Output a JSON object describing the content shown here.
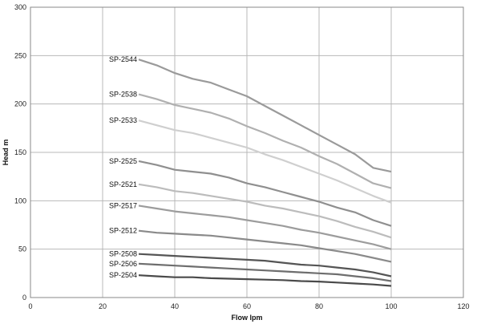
{
  "chart_data": {
    "type": "line",
    "title": "",
    "xlabel": "Flow  lpm",
    "ylabel": "Head  m",
    "xlim": [
      0,
      120
    ],
    "ylim": [
      0,
      300
    ],
    "xticks": [
      0,
      20,
      40,
      60,
      80,
      100,
      120
    ],
    "yticks": [
      0,
      50,
      100,
      150,
      200,
      250,
      300
    ],
    "grid": true,
    "series": [
      {
        "name": "SP-2544",
        "color": "#9a9a9a",
        "points": [
          [
            30,
            246
          ],
          [
            35,
            240
          ],
          [
            40,
            232
          ],
          [
            45,
            226
          ],
          [
            50,
            222
          ],
          [
            55,
            215
          ],
          [
            60,
            208
          ],
          [
            65,
            198
          ],
          [
            70,
            188
          ],
          [
            75,
            178
          ],
          [
            80,
            168
          ],
          [
            85,
            158
          ],
          [
            90,
            148
          ],
          [
            95,
            134
          ],
          [
            100,
            130
          ]
        ]
      },
      {
        "name": "SP-2538",
        "color": "#b0b0b0",
        "points": [
          [
            30,
            210
          ],
          [
            35,
            205
          ],
          [
            40,
            199
          ],
          [
            45,
            195
          ],
          [
            50,
            191
          ],
          [
            55,
            185
          ],
          [
            60,
            177
          ],
          [
            65,
            170
          ],
          [
            70,
            162
          ],
          [
            75,
            155
          ],
          [
            80,
            146
          ],
          [
            85,
            138
          ],
          [
            90,
            128
          ],
          [
            95,
            118
          ],
          [
            100,
            113
          ]
        ]
      },
      {
        "name": "SP-2533",
        "color": "#cfcfcf",
        "points": [
          [
            30,
            183
          ],
          [
            35,
            178
          ],
          [
            40,
            173
          ],
          [
            45,
            170
          ],
          [
            50,
            165
          ],
          [
            55,
            160
          ],
          [
            60,
            155
          ],
          [
            65,
            148
          ],
          [
            70,
            142
          ],
          [
            75,
            135
          ],
          [
            80,
            128
          ],
          [
            85,
            121
          ],
          [
            90,
            113
          ],
          [
            95,
            105
          ],
          [
            100,
            98
          ]
        ]
      },
      {
        "name": "SP-2525",
        "color": "#8f8f8f",
        "points": [
          [
            30,
            141
          ],
          [
            35,
            137
          ],
          [
            40,
            132
          ],
          [
            45,
            130
          ],
          [
            50,
            128
          ],
          [
            55,
            124
          ],
          [
            60,
            118
          ],
          [
            65,
            114
          ],
          [
            70,
            109
          ],
          [
            75,
            104
          ],
          [
            80,
            99
          ],
          [
            85,
            93
          ],
          [
            90,
            88
          ],
          [
            95,
            80
          ],
          [
            100,
            74
          ]
        ]
      },
      {
        "name": "SP-2521",
        "color": "#bcbcbc",
        "points": [
          [
            30,
            117
          ],
          [
            35,
            114
          ],
          [
            40,
            110
          ],
          [
            45,
            108
          ],
          [
            50,
            105
          ],
          [
            55,
            102
          ],
          [
            60,
            99
          ],
          [
            65,
            95
          ],
          [
            70,
            92
          ],
          [
            75,
            88
          ],
          [
            80,
            84
          ],
          [
            85,
            79
          ],
          [
            90,
            73
          ],
          [
            95,
            68
          ],
          [
            100,
            62
          ]
        ]
      },
      {
        "name": "SP-2517",
        "color": "#9c9c9c",
        "points": [
          [
            30,
            95
          ],
          [
            35,
            92
          ],
          [
            40,
            89
          ],
          [
            45,
            87
          ],
          [
            50,
            85
          ],
          [
            55,
            83
          ],
          [
            60,
            80
          ],
          [
            65,
            77
          ],
          [
            70,
            74
          ],
          [
            75,
            70
          ],
          [
            80,
            67
          ],
          [
            85,
            63
          ],
          [
            90,
            59
          ],
          [
            95,
            55
          ],
          [
            100,
            50
          ]
        ]
      },
      {
        "name": "SP-2512",
        "color": "#8a8a8a",
        "points": [
          [
            30,
            69
          ],
          [
            35,
            67
          ],
          [
            40,
            66
          ],
          [
            45,
            65
          ],
          [
            50,
            64
          ],
          [
            55,
            62
          ],
          [
            60,
            60
          ],
          [
            65,
            58
          ],
          [
            70,
            56
          ],
          [
            75,
            54
          ],
          [
            80,
            51
          ],
          [
            85,
            48
          ],
          [
            90,
            45
          ],
          [
            95,
            41
          ],
          [
            100,
            37
          ]
        ]
      },
      {
        "name": "SP-2508",
        "color": "#555555",
        "points": [
          [
            30,
            45
          ],
          [
            35,
            44
          ],
          [
            40,
            43
          ],
          [
            45,
            42
          ],
          [
            50,
            41
          ],
          [
            55,
            40
          ],
          [
            60,
            39
          ],
          [
            65,
            38
          ],
          [
            70,
            36
          ],
          [
            75,
            34
          ],
          [
            80,
            33
          ],
          [
            85,
            31
          ],
          [
            90,
            29
          ],
          [
            95,
            26
          ],
          [
            100,
            22
          ]
        ]
      },
      {
        "name": "SP-2506",
        "color": "#6e6e6e",
        "points": [
          [
            30,
            35
          ],
          [
            35,
            34
          ],
          [
            40,
            33
          ],
          [
            45,
            32
          ],
          [
            50,
            31
          ],
          [
            55,
            30
          ],
          [
            60,
            29
          ],
          [
            65,
            28
          ],
          [
            70,
            27
          ],
          [
            75,
            26
          ],
          [
            80,
            25
          ],
          [
            85,
            24
          ],
          [
            90,
            22
          ],
          [
            95,
            20
          ],
          [
            100,
            17
          ]
        ]
      },
      {
        "name": "SP-2504",
        "color": "#4a4a4a",
        "points": [
          [
            30,
            23
          ],
          [
            35,
            22
          ],
          [
            40,
            21
          ],
          [
            45,
            21
          ],
          [
            50,
            20
          ],
          [
            55,
            19.5
          ],
          [
            60,
            19
          ],
          [
            65,
            18.5
          ],
          [
            70,
            18
          ],
          [
            75,
            17
          ],
          [
            80,
            16.5
          ],
          [
            85,
            15.5
          ],
          [
            90,
            14.5
          ],
          [
            95,
            13.5
          ],
          [
            100,
            12
          ]
        ]
      }
    ]
  }
}
